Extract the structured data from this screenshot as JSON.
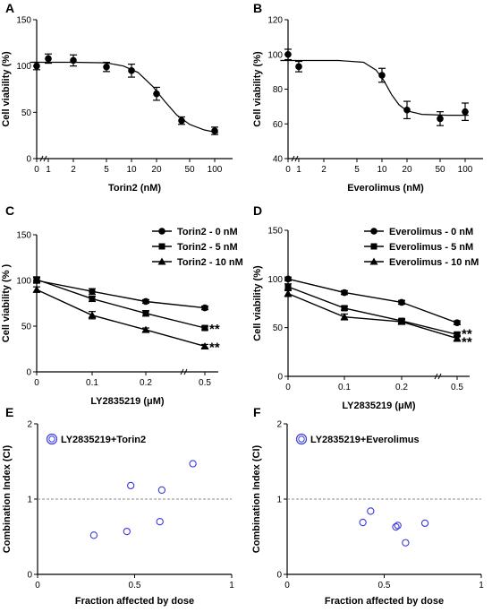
{
  "chart_data": [
    {
      "panel": "A",
      "type": "scatter",
      "xlabel": "Torin2  (nM)",
      "ylabel": "Cell viability (%)",
      "x_scale": "log",
      "xticks": [
        "0",
        "1",
        "2",
        "5",
        "10",
        "20",
        "50",
        "100"
      ],
      "ylim": [
        0,
        150
      ],
      "yticks": [
        0,
        50,
        100,
        150
      ],
      "series": [
        {
          "x": [
            0,
            1,
            2,
            5,
            10,
            20,
            40,
            100
          ],
          "y": [
            100,
            108,
            106,
            99,
            95,
            70,
            41,
            30
          ],
          "err": [
            4,
            5,
            6,
            5,
            7,
            7,
            4,
            4
          ],
          "marker": "circle",
          "fit": [
            [
              0.6,
              104
            ],
            [
              2,
              104
            ],
            [
              5,
              103.5
            ],
            [
              8,
              100
            ],
            [
              12,
              93
            ],
            [
              18,
              78
            ],
            [
              25,
              62
            ],
            [
              35,
              47
            ],
            [
              50,
              37
            ],
            [
              75,
              31
            ],
            [
              110,
              28
            ]
          ]
        }
      ]
    },
    {
      "panel": "B",
      "type": "scatter",
      "xlabel": "Everolimus  (nM)",
      "ylabel": "Cell viability (%)",
      "x_scale": "log",
      "xticks": [
        "0",
        "1",
        "2",
        "5",
        "10",
        "20",
        "50",
        "100"
      ],
      "ylim": [
        40,
        120
      ],
      "yticks": [
        40,
        60,
        80,
        100,
        120
      ],
      "series": [
        {
          "x": [
            0,
            1,
            10,
            20,
            50,
            100
          ],
          "y": [
            100,
            93,
            88,
            68,
            63,
            67
          ],
          "err": [
            3,
            3,
            4,
            5,
            4,
            5
          ],
          "marker": "circle",
          "fit": [
            [
              0.6,
              96.5
            ],
            [
              3,
              96.5
            ],
            [
              6,
              95.5
            ],
            [
              8.5,
              91
            ],
            [
              10.5,
              85
            ],
            [
              13,
              77
            ],
            [
              16,
              71
            ],
            [
              20,
              67.5
            ],
            [
              30,
              65.5
            ],
            [
              60,
              65
            ],
            [
              110,
              65
            ]
          ]
        }
      ]
    },
    {
      "panel": "C",
      "type": "line",
      "xlabel": "LY2835219  (μM)",
      "ylabel": "Cell viability (% )",
      "xlim": [
        0,
        0.55
      ],
      "xticks": [
        0,
        0.1,
        0.2,
        0.5
      ],
      "x_break": true,
      "ylim": [
        0,
        150
      ],
      "yticks": [
        0,
        50,
        100,
        150
      ],
      "x": [
        0,
        0.1,
        0.2,
        0.5
      ],
      "series": [
        {
          "name": "Torin2 - 0 nM",
          "marker": "circle",
          "values": [
            100,
            88,
            77,
            70
          ],
          "err": [
            3,
            3,
            2,
            2
          ]
        },
        {
          "name": "Torin2 - 5 nM",
          "marker": "square",
          "values": [
            101,
            80,
            64,
            48
          ],
          "err": [
            3,
            3,
            3,
            2
          ]
        },
        {
          "name": "Torin2 - 10 nM",
          "marker": "triangle",
          "values": [
            90,
            62,
            46,
            28
          ],
          "err": [
            3,
            4,
            2,
            2
          ]
        }
      ],
      "annotations": [
        "**",
        "**"
      ]
    },
    {
      "panel": "D",
      "type": "line",
      "xlabel": "LY2835219  (μM)",
      "ylabel": "Cell viability (%)",
      "xlim": [
        0,
        0.55
      ],
      "xticks": [
        0,
        0.1,
        0.2,
        0.5
      ],
      "x_break": true,
      "ylim": [
        0,
        150
      ],
      "yticks": [
        0,
        50,
        100,
        150
      ],
      "x": [
        0,
        0.1,
        0.2,
        0.5
      ],
      "series": [
        {
          "name": "Everolimus - 0 nM",
          "marker": "circle",
          "values": [
            100,
            86,
            76,
            55
          ],
          "err": [
            2,
            2,
            2,
            2
          ]
        },
        {
          "name": "Everolimus - 5 nM",
          "marker": "square",
          "values": [
            92,
            70,
            57,
            43
          ],
          "err": [
            3,
            2,
            2,
            2
          ]
        },
        {
          "name": "Everolimus - 10 nM",
          "marker": "triangle",
          "values": [
            85,
            61,
            56,
            39
          ],
          "err": [
            3,
            3,
            2,
            3
          ]
        }
      ],
      "annotations": [
        "**",
        "**"
      ]
    },
    {
      "panel": "E",
      "type": "scatter",
      "xlabel": "Fraction affected by dose",
      "ylabel": "Combination Index (CI)",
      "xlim": [
        0,
        1
      ],
      "xticks": [
        0,
        0.5,
        1
      ],
      "ylim": [
        0,
        2
      ],
      "yticks": [
        0,
        1,
        2
      ],
      "reference_line": 1,
      "legend": "LY2835219+Torin2",
      "points": [
        {
          "x": 0.29,
          "y": 0.52
        },
        {
          "x": 0.46,
          "y": 0.57
        },
        {
          "x": 0.48,
          "y": 1.18
        },
        {
          "x": 0.63,
          "y": 0.7
        },
        {
          "x": 0.64,
          "y": 1.12
        },
        {
          "x": 0.8,
          "y": 1.47
        }
      ]
    },
    {
      "panel": "F",
      "type": "scatter",
      "xlabel": "Fraction affected by dose",
      "ylabel": "Combination Index (CI)",
      "xlim": [
        0,
        1
      ],
      "xticks": [
        0,
        0.5,
        1
      ],
      "ylim": [
        0,
        2
      ],
      "yticks": [
        0,
        1,
        2
      ],
      "reference_line": 1,
      "legend": "LY2835219+Everolimus",
      "points": [
        {
          "x": 0.39,
          "y": 0.69
        },
        {
          "x": 0.43,
          "y": 0.84
        },
        {
          "x": 0.56,
          "y": 0.63
        },
        {
          "x": 0.57,
          "y": 0.65
        },
        {
          "x": 0.61,
          "y": 0.42
        },
        {
          "x": 0.71,
          "y": 0.68
        }
      ]
    }
  ]
}
